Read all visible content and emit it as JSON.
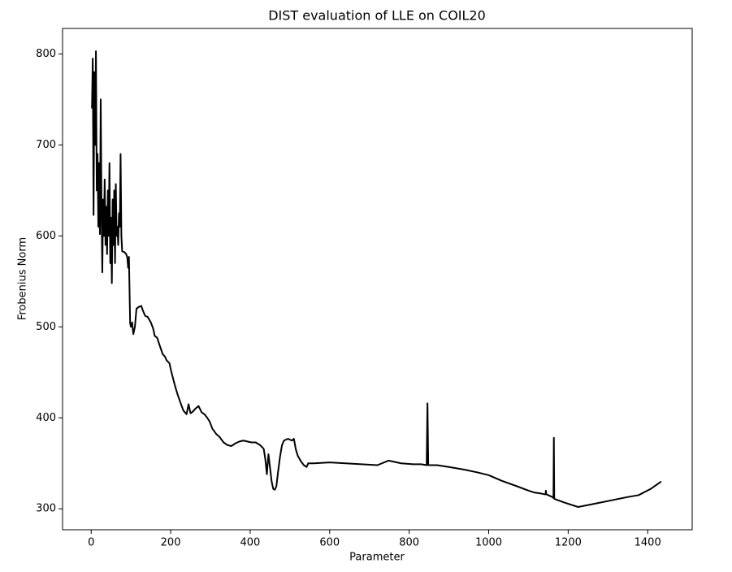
{
  "chart_data": {
    "type": "line",
    "title": "DIST evaluation of LLE on COIL20",
    "x_label": "Parameter",
    "y_label": "Frobenius Norm",
    "x": [
      2,
      4,
      6,
      8,
      10,
      12,
      14,
      16,
      18,
      20,
      22,
      24,
      26,
      28,
      30,
      32,
      34,
      36,
      38,
      40,
      42,
      44,
      46,
      48,
      50,
      52,
      54,
      56,
      58,
      60,
      62,
      64,
      66,
      68,
      70,
      72,
      74,
      76,
      78,
      84,
      88,
      91,
      93,
      95,
      98,
      100,
      103,
      106,
      110,
      114,
      120,
      126,
      130,
      136,
      142,
      150,
      156,
      160,
      166,
      172,
      180,
      186,
      190,
      197,
      202,
      208,
      213,
      218,
      226,
      232,
      240,
      245,
      250,
      256,
      262,
      270,
      278,
      285,
      292,
      298,
      305,
      315,
      323,
      333,
      343,
      353,
      363,
      373,
      383,
      393,
      403,
      414,
      425,
      434,
      438,
      442,
      446,
      450,
      454,
      458,
      462,
      466,
      470,
      475,
      480,
      485,
      495,
      505,
      510,
      515,
      520,
      528,
      535,
      542,
      546,
      560,
      600,
      640,
      680,
      720,
      748,
      780,
      810,
      830,
      844,
      846,
      848,
      870,
      900,
      940,
      972,
      1000,
      1032,
      1070,
      1100,
      1114,
      1130,
      1140,
      1143,
      1144,
      1145,
      1160,
      1163,
      1164,
      1165,
      1190,
      1225,
      1260,
      1316,
      1350,
      1377,
      1408,
      1434
    ],
    "values": [
      740,
      795,
      623,
      780,
      700,
      803,
      650,
      690,
      610,
      680,
      602,
      750,
      630,
      560,
      640,
      600,
      662,
      590,
      632,
      580,
      650,
      600,
      680,
      570,
      620,
      548,
      640,
      590,
      650,
      570,
      657,
      600,
      610,
      590,
      625,
      610,
      690,
      600,
      583,
      582,
      580,
      576,
      565,
      577,
      504,
      500,
      505,
      492,
      500,
      520,
      522,
      523,
      518,
      512,
      511,
      505,
      498,
      490,
      488,
      480,
      470,
      467,
      463,
      460,
      450,
      440,
      432,
      425,
      415,
      408,
      404,
      415,
      405,
      407,
      410,
      413,
      406,
      404,
      400,
      396,
      388,
      382,
      379,
      373,
      370,
      369,
      372,
      374,
      375,
      374,
      373,
      373,
      370,
      366,
      355,
      338,
      360,
      345,
      330,
      322,
      321,
      325,
      340,
      357,
      370,
      375,
      377,
      375,
      377,
      365,
      358,
      352,
      348,
      346,
      350,
      350,
      351,
      350,
      349,
      348,
      353,
      350,
      349,
      349,
      348,
      416,
      348,
      348,
      346,
      343,
      340,
      337,
      331,
      325,
      320,
      318,
      317,
      316,
      316,
      320,
      316,
      313,
      312,
      378,
      311,
      307,
      302,
      305,
      310,
      313,
      315,
      322,
      330
    ],
    "color": "#000000",
    "xlim": [
      -72,
      1512
    ],
    "xticks": [
      0,
      200,
      400,
      600,
      800,
      1000,
      1200,
      1400
    ],
    "ylim": [
      277,
      828
    ],
    "yticks": [
      300,
      400,
      500,
      600,
      700,
      800
    ]
  }
}
